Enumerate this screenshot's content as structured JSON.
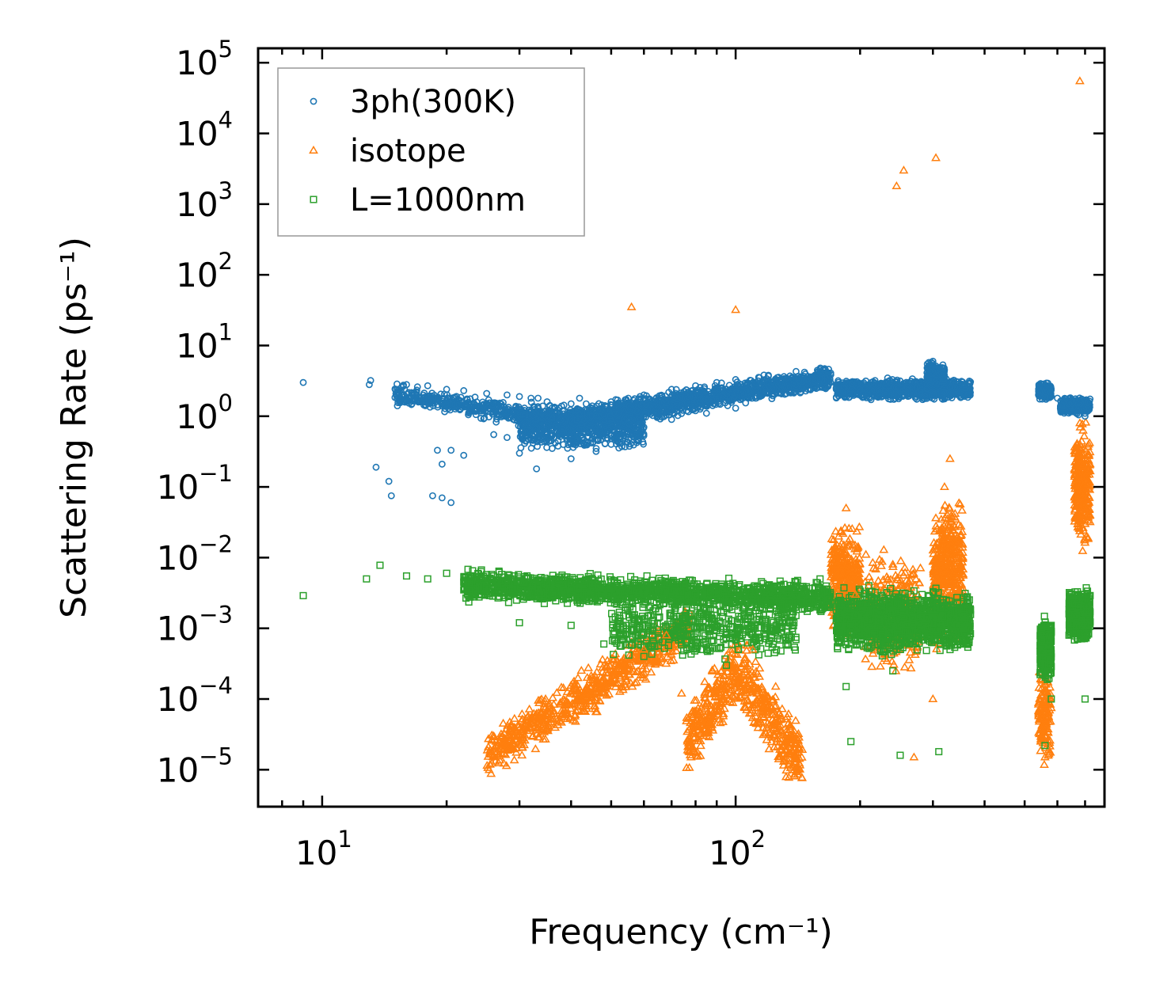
{
  "chart_data": {
    "type": "scatter",
    "title": "",
    "xlabel": "Frequency (cm⁻¹)",
    "ylabel": "Scattering Rate (ps⁻¹)",
    "xscale": "log",
    "yscale": "log",
    "xlim": [
      7.0,
      780
    ],
    "ylim": [
      3e-06,
      160000.0
    ],
    "x_ticks": [
      {
        "base": "10",
        "exp": "1",
        "value": 10
      },
      {
        "base": "10",
        "exp": "2",
        "value": 100
      }
    ],
    "y_ticks": [
      {
        "base": "10",
        "exp": "5",
        "value": 100000
      },
      {
        "base": "10",
        "exp": "4",
        "value": 10000
      },
      {
        "base": "10",
        "exp": "3",
        "value": 1000
      },
      {
        "base": "10",
        "exp": "2",
        "value": 100
      },
      {
        "base": "10",
        "exp": "1",
        "value": 10
      },
      {
        "base": "10",
        "exp": "0",
        "value": 1
      },
      {
        "base": "10",
        "exp": "−1",
        "value": 0.1
      },
      {
        "base": "10",
        "exp": "−2",
        "value": 0.01
      },
      {
        "base": "10",
        "exp": "−3",
        "value": 0.001
      },
      {
        "base": "10",
        "exp": "−4",
        "value": 0.0001
      },
      {
        "base": "10",
        "exp": "−5",
        "value": 1e-05
      }
    ],
    "legend_position": "top-left",
    "series": [
      {
        "name": "3ph(300K)",
        "marker": "circle",
        "color": "#1f77b4",
        "points": [
          [
            9.0,
            3.0
          ],
          [
            13.0,
            2.8
          ],
          [
            13.1,
            3.2
          ],
          [
            16,
            2.8
          ],
          [
            17,
            2.6
          ],
          [
            18,
            2.7
          ],
          [
            20,
            2.4
          ],
          [
            22,
            2.3
          ],
          [
            25,
            2.1
          ],
          [
            28,
            2.0
          ],
          [
            30,
            1.9
          ],
          [
            32,
            1.8
          ],
          [
            35,
            1.6
          ],
          [
            40,
            1.5
          ],
          [
            45,
            1.4
          ],
          [
            50,
            1.6
          ],
          [
            55,
            1.8
          ],
          [
            60,
            2.0
          ],
          [
            70,
            2.4
          ],
          [
            80,
            2.7
          ],
          [
            90,
            3.0
          ],
          [
            100,
            3.3
          ],
          [
            120,
            3.8
          ],
          [
            140,
            4.3
          ],
          [
            160,
            4.6
          ],
          [
            13.5,
            0.19
          ],
          [
            14.5,
            0.12
          ],
          [
            14.7,
            0.075
          ],
          [
            18.5,
            0.075
          ],
          [
            19.5,
            0.07
          ],
          [
            20.5,
            0.06
          ],
          [
            19,
            0.33
          ],
          [
            19.5,
            0.21
          ],
          [
            20.5,
            0.33
          ],
          [
            22,
            0.28
          ],
          [
            26,
            0.55
          ],
          [
            28,
            0.5
          ],
          [
            30,
            0.3
          ],
          [
            33,
            0.18
          ],
          [
            36,
            0.35
          ],
          [
            40,
            0.25
          ],
          [
            46,
            0.35
          ],
          [
            50,
            0.4
          ],
          [
            55,
            0.6
          ],
          [
            60,
            0.7
          ],
          [
            70,
            0.9
          ],
          [
            85,
            1.1
          ],
          [
            100,
            1.3
          ],
          [
            180,
            2.5
          ],
          [
            200,
            2.4
          ],
          [
            230,
            2.0
          ],
          [
            260,
            2.6
          ],
          [
            280,
            2.2
          ],
          [
            300,
            6.0
          ],
          [
            330,
            2.6
          ],
          [
            360,
            2.5
          ],
          [
            560,
            2.2
          ],
          [
            600,
            1.8
          ],
          [
            640,
            1.5
          ],
          [
            700,
            1.0
          ]
        ]
      },
      {
        "name": "isotope",
        "marker": "triangle",
        "color": "#ff7f0e",
        "points": [
          [
            56,
            35
          ],
          [
            100,
            32
          ],
          [
            245,
            1800
          ],
          [
            255,
            3000
          ],
          [
            305,
            4500
          ],
          [
            680,
            55000
          ],
          [
            26,
            1.6e-05
          ],
          [
            30,
            3e-05
          ],
          [
            35,
            7e-05
          ],
          [
            40,
            0.00012
          ],
          [
            45,
            0.0002
          ],
          [
            52,
            0.0003
          ],
          [
            60,
            0.0005
          ],
          [
            68,
            0.0008
          ],
          [
            74,
            0.00012
          ],
          [
            78,
            1.5e-05
          ],
          [
            85,
            3e-05
          ],
          [
            95,
            0.00015
          ],
          [
            110,
            0.0005
          ],
          [
            125,
            0.00015
          ],
          [
            140,
            1.5e-05
          ],
          [
            175,
            0.01
          ],
          [
            185,
            0.05
          ],
          [
            195,
            0.003
          ],
          [
            240,
            0.008
          ],
          [
            270,
            1.5e-05
          ],
          [
            300,
            0.0001
          ],
          [
            320,
            0.1
          ],
          [
            330,
            0.25
          ],
          [
            340,
            0.004
          ],
          [
            560,
            1.5e-05
          ],
          [
            680,
            0.8
          ],
          [
            690,
            0.2
          ],
          [
            700,
            0.03
          ]
        ]
      },
      {
        "name": "L=1000nm",
        "marker": "square",
        "color": "#2ca02c",
        "points": [
          [
            9.0,
            0.0029
          ],
          [
            12.8,
            0.005
          ],
          [
            13.8,
            0.0078
          ],
          [
            16,
            0.0055
          ],
          [
            18,
            0.005
          ],
          [
            20,
            0.006
          ],
          [
            22,
            0.0045
          ],
          [
            26,
            0.0055
          ],
          [
            30,
            0.005
          ],
          [
            35,
            0.0045
          ],
          [
            40,
            0.0045
          ],
          [
            45,
            0.004
          ],
          [
            50,
            0.004
          ],
          [
            55,
            0.0035
          ],
          [
            60,
            0.0035
          ],
          [
            70,
            0.0035
          ],
          [
            80,
            0.003
          ],
          [
            90,
            0.0035
          ],
          [
            100,
            0.003
          ],
          [
            120,
            0.004
          ],
          [
            140,
            0.0045
          ],
          [
            160,
            0.005
          ],
          [
            30,
            0.0012
          ],
          [
            40,
            0.0011
          ],
          [
            48,
            0.0006
          ],
          [
            60,
            0.0004
          ],
          [
            75,
            0.0009
          ],
          [
            95,
            0.0003
          ],
          [
            100,
            0.0007
          ],
          [
            130,
            0.0012
          ],
          [
            180,
            0.002
          ],
          [
            185,
            0.00015
          ],
          [
            190,
            2.5e-05
          ],
          [
            210,
            0.004
          ],
          [
            240,
            0.00025
          ],
          [
            250,
            1.6e-05
          ],
          [
            300,
            0.002
          ],
          [
            310,
            1.8e-05
          ],
          [
            330,
            0.0005
          ],
          [
            360,
            0.001
          ],
          [
            560,
            2.2e-05
          ],
          [
            580,
            0.0001
          ],
          [
            640,
            0.0008
          ],
          [
            700,
            0.0001
          ]
        ]
      }
    ]
  }
}
